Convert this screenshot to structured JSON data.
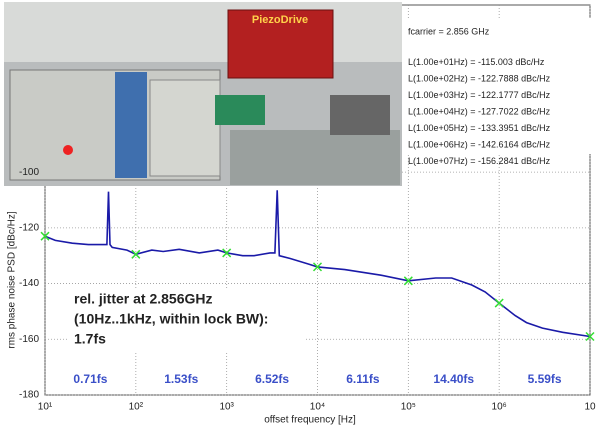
{
  "chart_data": {
    "type": "line",
    "x_label": "offset frequency [Hz]",
    "y_label": "rms phase noise PSD [dBc/Hz]",
    "xlim": [
      10,
      10000000
    ],
    "log_x": true,
    "xticks": [
      {
        "value": 10,
        "label": "10¹"
      },
      {
        "value": 100,
        "label": "10²"
      },
      {
        "value": 1000,
        "label": "10³"
      },
      {
        "value": 10000,
        "label": "10⁴"
      },
      {
        "value": 100000,
        "label": "10⁵"
      },
      {
        "value": 1000000,
        "label": "10⁶"
      },
      {
        "value": 10000000,
        "label": "10"
      }
    ],
    "ylim": [
      -180,
      -40
    ],
    "yticks": [
      -180,
      -160,
      -140,
      -120,
      -100
    ],
    "grid": true,
    "series": [
      {
        "color": "#1a1aa8",
        "marker": "none",
        "x": [
          10,
          13,
          20,
          30,
          45,
          48,
          50,
          52,
          55,
          80,
          100,
          150,
          200,
          300,
          500,
          800,
          1000,
          1500,
          2000,
          3000,
          3400,
          3600,
          3800,
          5000,
          8000,
          10000,
          20000,
          50000,
          100000,
          200000,
          300000,
          500000,
          700000,
          1000000,
          1500000,
          2000000,
          3000000,
          5000000,
          10000000
        ],
        "values": [
          -123,
          -124.5,
          -125.5,
          -126,
          -126,
          -126,
          -107,
          -126,
          -127,
          -128,
          -129.5,
          -128,
          -128.5,
          -127.7,
          -129,
          -128,
          -129,
          -130,
          -130,
          -129,
          -129,
          -106.5,
          -130,
          -131,
          -133,
          -134,
          -135,
          -137,
          -139,
          -138,
          -138,
          -140.5,
          -143,
          -147,
          -151.5,
          -154,
          -156,
          -157.5,
          -159
        ]
      },
      {
        "color": "#33dd33",
        "marker": "x",
        "x": [
          10,
          100,
          1000,
          10000,
          100000,
          1000000,
          10000000
        ],
        "values": [
          -123,
          -129.5,
          -129,
          -134,
          -139,
          -147,
          -159
        ]
      }
    ],
    "info_box": [
      "fcarrier = 2.856 GHz",
      "L(1.00e+01Hz) = -115.003 dBc/Hz",
      "L(1.00e+02Hz) = -122.7888 dBc/Hz",
      "L(1.00e+03Hz) = -122.1777 dBc/Hz",
      "L(1.00e+04Hz) = -127.7022 dBc/Hz",
      "L(1.00e+05Hz) = -133.3951 dBc/Hz",
      "L(1.00e+06Hz) = -142.6164 dBc/Hz",
      "L(1.00e+07Hz) = -156.2841 dBc/Hz"
    ],
    "jitter_note": [
      "rel. jitter at 2.856GHz",
      "(10Hz..1kHz, within lock BW):",
      "1.7fs"
    ],
    "segment_labels": [
      "0.71fs",
      "1.53fs",
      "6.52fs",
      "6.11fs",
      "14.40fs",
      "5.59fs"
    ]
  }
}
